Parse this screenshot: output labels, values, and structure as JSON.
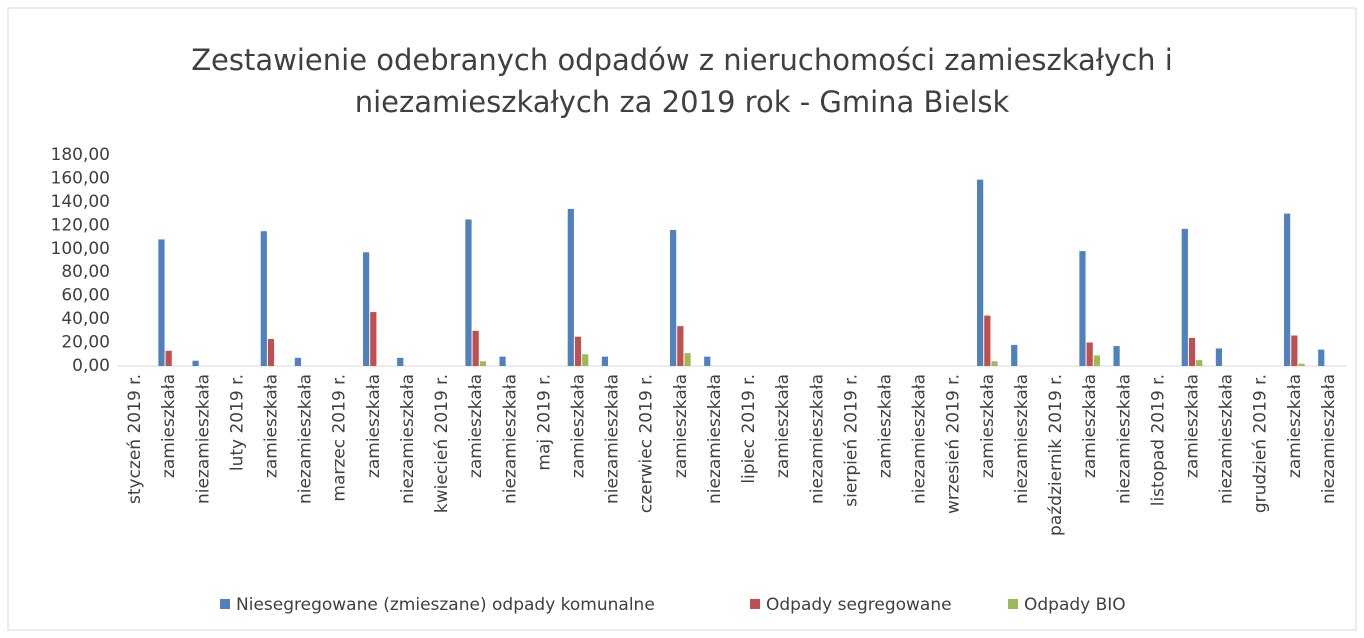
{
  "chart_data": {
    "type": "bar",
    "title": [
      "Zestawienie odebranych odpadów z nieruchomości zamieszkałych i",
      "niezamieszkałych za 2019 rok - Gmina Bielsk"
    ],
    "categories": [
      "styczeń 2019 r.",
      "zamieszkała",
      "niezamieszkała",
      "luty 2019 r.",
      "zamieszkała",
      "niezamieszkała",
      "marzec 2019 r.",
      "zamieszkała",
      "niezamieszkała",
      "kwiecień 2019 r.",
      "zamieszkała",
      "niezamieszkała",
      "maj 2019 r.",
      "zamieszkała",
      "niezamieszkała",
      "czerwiec 2019 r.",
      "zamieszkała",
      "niezamieszkała",
      "lipiec 2019 r.",
      "zamieszkała",
      "niezamieszkała",
      "sierpień 2019 r.",
      "zamieszkała",
      "niezamieszkała",
      "wrzesień 2019 r.",
      "zamieszkała",
      "niezamieszkała",
      "październik 2019 r.",
      "zamieszkała",
      "niezamieszkała",
      "listopad 2019 r.",
      "zamieszkała",
      "niezamieszkała",
      "grudzień 2019 r.",
      "zamieszkała",
      "niezamieszkała"
    ],
    "series": [
      {
        "name": "Niesegregowane (zmieszane) odpady komunalne",
        "color": "#4f81bd",
        "values": [
          null,
          108,
          4.5,
          null,
          115,
          7,
          null,
          97,
          7,
          null,
          125,
          8,
          null,
          134,
          8,
          null,
          116,
          8,
          null,
          null,
          null,
          null,
          null,
          null,
          null,
          159,
          18,
          null,
          98,
          17,
          null,
          117,
          15,
          null,
          130,
          14
        ]
      },
      {
        "name": "Odpady segregowane",
        "color": "#c0504d",
        "values": [
          null,
          13,
          null,
          null,
          23,
          null,
          null,
          46,
          null,
          null,
          30,
          null,
          null,
          25,
          null,
          null,
          34,
          null,
          null,
          null,
          null,
          null,
          null,
          null,
          null,
          43,
          null,
          null,
          20,
          null,
          null,
          24,
          null,
          null,
          26,
          null
        ]
      },
      {
        "name": "Odpady BIO",
        "color": "#9bbb59",
        "values": [
          null,
          null,
          null,
          null,
          null,
          null,
          null,
          null,
          null,
          null,
          4,
          null,
          null,
          10,
          null,
          null,
          11,
          null,
          null,
          null,
          null,
          null,
          null,
          null,
          null,
          4,
          null,
          null,
          9,
          null,
          null,
          5,
          null,
          null,
          2,
          null
        ]
      }
    ],
    "ylim": [
      0,
      180
    ],
    "yticks": [
      {
        "value": 0,
        "label": "0,00"
      },
      {
        "value": 20,
        "label": "20,00"
      },
      {
        "value": 40,
        "label": "40,00"
      },
      {
        "value": 60,
        "label": "60,00"
      },
      {
        "value": 80,
        "label": "80,00"
      },
      {
        "value": 100,
        "label": "100,00"
      },
      {
        "value": 120,
        "label": "120,00"
      },
      {
        "value": 140,
        "label": "140,00"
      },
      {
        "value": 160,
        "label": "160,00"
      },
      {
        "value": 180,
        "label": "180,00"
      }
    ],
    "grid": false,
    "legend": "bottom"
  }
}
